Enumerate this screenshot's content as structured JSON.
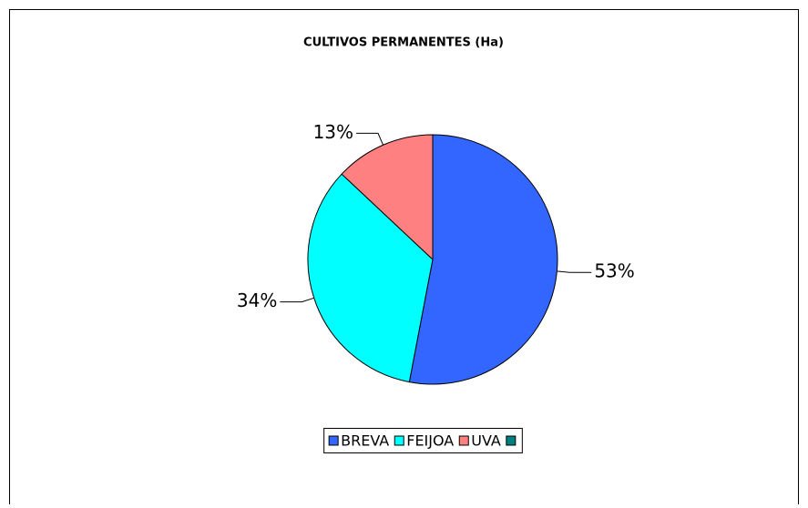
{
  "chart_data": {
    "type": "pie",
    "title": "CULTIVOS PERMANENTES (Ha)",
    "categories": [
      "BREVA",
      "FEIJOA",
      "UVA",
      null
    ],
    "values": [
      53,
      34,
      13,
      0
    ],
    "value_labels": [
      "53%",
      "34%",
      "13%",
      null
    ],
    "colors": [
      "#3366ff",
      "#00ffff",
      "#ff8080",
      "#008080"
    ],
    "legend": "bottom"
  }
}
